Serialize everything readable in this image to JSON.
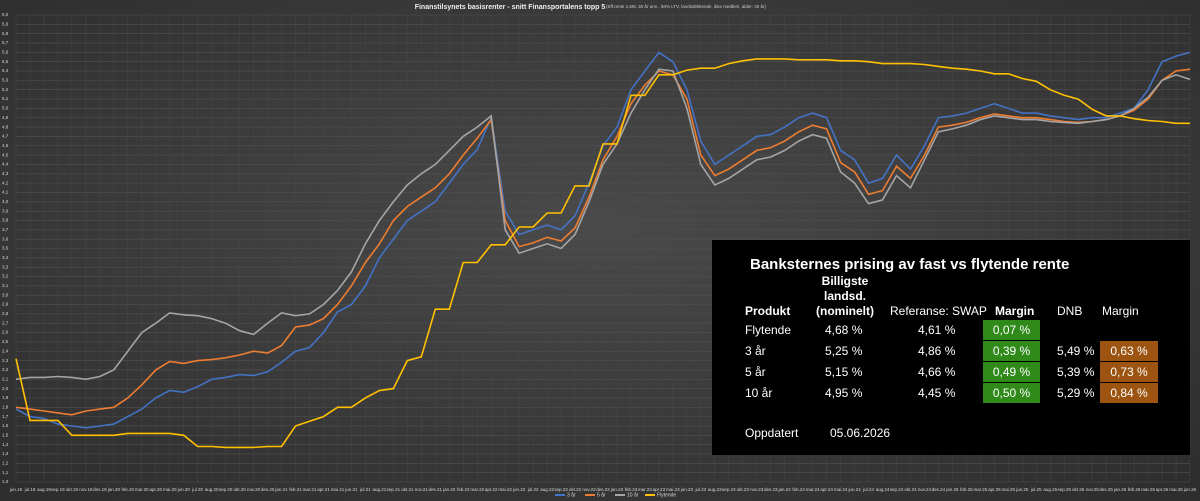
{
  "chart_data": {
    "type": "line",
    "title": "Finanstilsynets basisrenter - snitt Finansportalens topp 5",
    "subtitle": "(Eff.rente 1,5M, 30 år ann., 50% LTV, landsdekkende, ikke medlem, alder: 45 år)",
    "categories": [
      "jun.19",
      "jul.19",
      "aug.19",
      "sep.19",
      "okt.19",
      "nov.19",
      "des.19",
      "jan.20",
      "feb.20",
      "mar.20",
      "apr.20",
      "mai.20",
      "jun.20",
      "jul.20",
      "aug.20",
      "sep.20",
      "okt.20",
      "nov.20",
      "des.20",
      "jan.21",
      "feb.21",
      "mar.21",
      "apr.21",
      "mai.21",
      "jun.21",
      "jul.21",
      "aug.21",
      "sep.21",
      "okt.21",
      "nov.21",
      "des.21",
      "jan.22",
      "feb.22",
      "mar.22",
      "apr.22",
      "mai.22",
      "jun.22",
      "jul.22",
      "aug.22",
      "sep.22",
      "okt.22",
      "nov.22",
      "des.22",
      "jan.23",
      "feb.23",
      "mar.23",
      "apr.23",
      "mai.23",
      "jun.23",
      "jul.23",
      "aug.23",
      "sep.23",
      "okt.23",
      "nov.23",
      "des.23",
      "jan.24",
      "feb.24",
      "mar.24",
      "apr.24",
      "mai.24",
      "jun.24",
      "jul.24",
      "aug.24",
      "sep.24",
      "okt.24",
      "nov.24",
      "des.24",
      "jan.25",
      "feb.25",
      "mar.25",
      "apr.25",
      "mai.25",
      "jun.25",
      "jul.25",
      "aug.25",
      "sep.25",
      "okt.25",
      "nov.25",
      "des.25",
      "jan.26",
      "feb.26",
      "mar.26",
      "apr.26",
      "mai.26",
      "jun.26"
    ],
    "series": [
      {
        "name": "3 år",
        "color": "#4472c4",
        "values": [
          1.78,
          1.7,
          1.68,
          1.62,
          1.6,
          1.58,
          1.6,
          1.62,
          1.7,
          1.78,
          1.9,
          1.98,
          1.96,
          2.02,
          2.1,
          2.12,
          2.15,
          2.14,
          2.18,
          2.28,
          2.4,
          2.44,
          2.6,
          2.82,
          2.9,
          3.1,
          3.4,
          3.6,
          3.8,
          3.9,
          4.0,
          4.2,
          4.4,
          4.56,
          4.9,
          3.9,
          3.65,
          3.7,
          3.75,
          3.7,
          3.85,
          4.2,
          4.6,
          4.8,
          5.2,
          5.4,
          5.6,
          5.5,
          5.2,
          4.65,
          4.4,
          4.5,
          4.6,
          4.7,
          4.72,
          4.8,
          4.9,
          4.95,
          4.9,
          4.55,
          4.45,
          4.2,
          4.25,
          4.5,
          4.35,
          4.6,
          4.9,
          4.92,
          4.95,
          5.0,
          5.05,
          5.0,
          4.95,
          4.95,
          4.92,
          4.9,
          4.88,
          4.9,
          4.9,
          4.95,
          5.0,
          5.2,
          5.5,
          5.56,
          5.6
        ]
      },
      {
        "name": "5 år",
        "color": "#ed7d31",
        "values": [
          1.8,
          1.78,
          1.76,
          1.74,
          1.72,
          1.76,
          1.78,
          1.8,
          1.9,
          2.04,
          2.2,
          2.29,
          2.27,
          2.3,
          2.31,
          2.33,
          2.36,
          2.4,
          2.38,
          2.46,
          2.66,
          2.68,
          2.75,
          2.9,
          3.1,
          3.35,
          3.55,
          3.8,
          3.95,
          4.05,
          4.15,
          4.3,
          4.5,
          4.68,
          4.88,
          3.8,
          3.52,
          3.56,
          3.62,
          3.58,
          3.72,
          4.05,
          4.45,
          4.7,
          5.05,
          5.25,
          5.4,
          5.36,
          5.1,
          4.5,
          4.28,
          4.35,
          4.45,
          4.55,
          4.58,
          4.65,
          4.75,
          4.82,
          4.78,
          4.42,
          4.32,
          4.08,
          4.12,
          4.38,
          4.25,
          4.5,
          4.8,
          4.82,
          4.85,
          4.9,
          4.94,
          4.92,
          4.9,
          4.9,
          4.88,
          4.86,
          4.85,
          4.86,
          4.88,
          4.92,
          4.98,
          5.1,
          5.3,
          5.4,
          5.42
        ]
      },
      {
        "name": "10 år",
        "color": "#a5a5a5",
        "values": [
          2.1,
          2.12,
          2.12,
          2.13,
          2.12,
          2.1,
          2.13,
          2.2,
          2.4,
          2.6,
          2.7,
          2.81,
          2.79,
          2.78,
          2.75,
          2.7,
          2.62,
          2.58,
          2.7,
          2.81,
          2.78,
          2.8,
          2.9,
          3.05,
          3.25,
          3.55,
          3.8,
          4.0,
          4.18,
          4.3,
          4.4,
          4.55,
          4.7,
          4.8,
          4.92,
          3.7,
          3.45,
          3.5,
          3.55,
          3.5,
          3.65,
          4.0,
          4.4,
          4.62,
          4.95,
          5.2,
          5.42,
          5.4,
          5.0,
          4.4,
          4.18,
          4.25,
          4.35,
          4.45,
          4.48,
          4.55,
          4.65,
          4.72,
          4.68,
          4.32,
          4.2,
          3.98,
          4.02,
          4.28,
          4.15,
          4.45,
          4.75,
          4.78,
          4.82,
          4.88,
          4.92,
          4.9,
          4.88,
          4.88,
          4.86,
          4.85,
          4.84,
          4.86,
          4.88,
          4.92,
          5.0,
          5.12,
          5.3,
          5.36,
          5.31
        ]
      },
      {
        "name": "Flytende",
        "color": "#ffc000",
        "values": [
          2.32,
          1.66,
          1.66,
          1.66,
          1.5,
          1.5,
          1.5,
          1.5,
          1.52,
          1.52,
          1.52,
          1.52,
          1.5,
          1.38,
          1.38,
          1.37,
          1.37,
          1.37,
          1.38,
          1.38,
          1.6,
          1.65,
          1.7,
          1.8,
          1.8,
          1.9,
          1.98,
          2.0,
          2.3,
          2.34,
          2.85,
          2.85,
          3.35,
          3.35,
          3.54,
          3.54,
          3.73,
          3.73,
          3.88,
          3.88,
          4.17,
          4.17,
          4.62,
          4.62,
          5.14,
          5.14,
          5.36,
          5.36,
          5.41,
          5.43,
          5.43,
          5.48,
          5.51,
          5.53,
          5.53,
          5.53,
          5.52,
          5.52,
          5.52,
          5.51,
          5.51,
          5.5,
          5.48,
          5.48,
          5.48,
          5.47,
          5.45,
          5.43,
          5.42,
          5.4,
          5.37,
          5.37,
          5.32,
          5.29,
          5.2,
          5.14,
          5.1,
          4.99,
          4.92,
          4.92,
          4.89,
          4.87,
          4.86,
          4.84,
          4.84
        ]
      }
    ],
    "ylim": [
      1.0,
      6.0
    ],
    "yticks": [
      {
        "value": 1.0,
        "label": "1,0"
      },
      {
        "value": 1.1,
        "label": "1,1"
      },
      {
        "value": 1.2,
        "label": "1,2"
      },
      {
        "value": 1.3,
        "label": "1,3"
      },
      {
        "value": 1.4,
        "label": "1,4"
      },
      {
        "value": 1.5,
        "label": "1,5"
      },
      {
        "value": 1.6,
        "label": "1,6"
      },
      {
        "value": 1.7,
        "label": "1,7"
      },
      {
        "value": 1.8,
        "label": "1,8"
      },
      {
        "value": 1.9,
        "label": "1,9"
      },
      {
        "value": 2.0,
        "label": "2,0"
      },
      {
        "value": 2.1,
        "label": "2,1"
      },
      {
        "value": 2.2,
        "label": "2,2"
      },
      {
        "value": 2.3,
        "label": "2,3"
      },
      {
        "value": 2.4,
        "label": "2,4"
      },
      {
        "value": 2.5,
        "label": "2,5"
      },
      {
        "value": 2.6,
        "label": "2,6"
      },
      {
        "value": 2.7,
        "label": "2,7"
      },
      {
        "value": 2.8,
        "label": "2,8"
      },
      {
        "value": 2.9,
        "label": "2,9"
      },
      {
        "value": 3.0,
        "label": "3,0"
      },
      {
        "value": 3.1,
        "label": "3,1"
      },
      {
        "value": 3.2,
        "label": "3,2"
      },
      {
        "value": 3.3,
        "label": "3,3"
      },
      {
        "value": 3.4,
        "label": "3,4"
      },
      {
        "value": 3.5,
        "label": "3,5"
      },
      {
        "value": 3.6,
        "label": "3,6"
      },
      {
        "value": 3.7,
        "label": "3,7"
      },
      {
        "value": 3.8,
        "label": "3,8"
      },
      {
        "value": 3.9,
        "label": "3,9"
      },
      {
        "value": 4.0,
        "label": "4,0"
      },
      {
        "value": 4.1,
        "label": "4,1"
      },
      {
        "value": 4.2,
        "label": "4,2"
      },
      {
        "value": 4.3,
        "label": "4,3"
      },
      {
        "value": 4.4,
        "label": "4,4"
      },
      {
        "value": 4.5,
        "label": "4,5"
      },
      {
        "value": 4.6,
        "label": "4,6"
      },
      {
        "value": 4.7,
        "label": "4,7"
      },
      {
        "value": 4.8,
        "label": "4,8"
      },
      {
        "value": 4.9,
        "label": "4,9"
      },
      {
        "value": 5.0,
        "label": "5,0"
      },
      {
        "value": 5.1,
        "label": "5,1"
      },
      {
        "value": 5.2,
        "label": "5,2"
      },
      {
        "value": 5.3,
        "label": "5,3"
      },
      {
        "value": 5.4,
        "label": "5,4"
      },
      {
        "value": 5.5,
        "label": "5,5"
      },
      {
        "value": 5.6,
        "label": "5,6"
      },
      {
        "value": 5.7,
        "label": "5,7"
      },
      {
        "value": 5.8,
        "label": "5,8"
      },
      {
        "value": 5.9,
        "label": "5,9"
      },
      {
        "value": 6.0,
        "label": "6,0"
      }
    ],
    "grid": true,
    "legend": "bottom"
  },
  "table": {
    "title": "Banksternes prising av fast vs flytende rente",
    "header": [
      "Produkt",
      "Billigste landsd. (nominelt)",
      "Referanse: SWAP",
      "Margin",
      "DNB",
      "Margin"
    ],
    "rows": [
      [
        "Flytende",
        "4,68 %",
        "4,61 %",
        "0,07 %"
      ],
      [
        "3 år",
        "5,25 %",
        "4,86 %",
        "0,39 %",
        "5,49 %",
        "0,63 %"
      ],
      [
        "5 år",
        "5,15 %",
        "4,66 %",
        "0,49 %",
        "5,39 %",
        "0,73 %"
      ],
      [
        "10 år",
        "4,95 %",
        "4,45 %",
        "0,50 %",
        "5,29 %",
        "0,84 %"
      ]
    ],
    "updated_label": "Oppdatert",
    "updated_date": "05.06.2026"
  }
}
